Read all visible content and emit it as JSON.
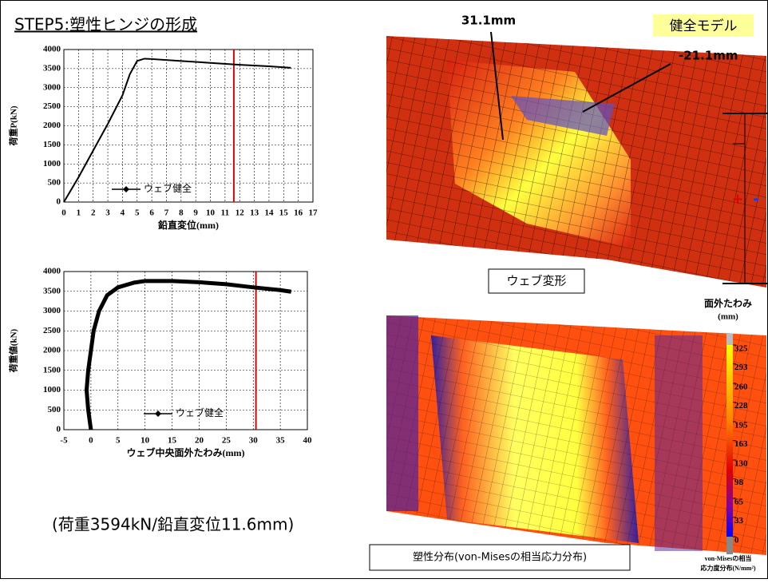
{
  "title": "STEP5:塑性ヒンジの形成",
  "note": "(荷重3594kN/鉛直変位11.6mm)",
  "chart_data": [
    {
      "type": "line",
      "xlabel": "鉛直変位(mm)",
      "ylabel": "荷重P(kN)",
      "x": [
        0,
        1,
        2,
        3,
        4,
        4.5,
        5,
        5.5,
        6,
        8,
        10,
        12,
        14,
        15.5
      ],
      "series": [
        {
          "name": "ウェブ健全",
          "color": "#000000",
          "values": [
            0,
            650,
            1350,
            2050,
            2800,
            3350,
            3700,
            3760,
            3750,
            3700,
            3650,
            3600,
            3560,
            3520
          ]
        }
      ],
      "xlim": [
        0,
        17
      ],
      "xticks": [
        0,
        1,
        2,
        3,
        4,
        5,
        6,
        7,
        8,
        9,
        10,
        11,
        12,
        13,
        14,
        15,
        16,
        17
      ],
      "ylim": [
        0,
        4000
      ],
      "yticks": [
        0,
        500,
        1000,
        1500,
        2000,
        2500,
        3000,
        3500,
        4000
      ],
      "grid": true,
      "vline": {
        "x": 11.6,
        "color": "#e00000"
      }
    },
    {
      "type": "line",
      "xlabel": "ウェブ中央面外たわみ(mm)",
      "ylabel": "荷重値(kN)",
      "x": [
        0,
        -0.5,
        -0.8,
        -0.5,
        0,
        0.5,
        1.5,
        3,
        5,
        8,
        10,
        15,
        20,
        25,
        30,
        35,
        37
      ],
      "series": [
        {
          "name": "ウェブ健全",
          "color": "#000000",
          "values": [
            0,
            500,
            1000,
            1500,
            2000,
            2500,
            3000,
            3400,
            3600,
            3720,
            3760,
            3760,
            3730,
            3680,
            3600,
            3530,
            3490
          ]
        }
      ],
      "xlim": [
        -5,
        40
      ],
      "xticks": [
        -5,
        0,
        5,
        10,
        15,
        20,
        25,
        30,
        35,
        40
      ],
      "ylim": [
        0,
        4000
      ],
      "yticks": [
        0,
        500,
        1000,
        1500,
        2000,
        2500,
        3000,
        3500,
        4000
      ],
      "grid": true,
      "vline": {
        "x": 30.5,
        "color": "#e00000"
      }
    }
  ],
  "fem": {
    "max_label": "31.1mm",
    "min_label": "-21.1mm",
    "model_label": "健全モデル",
    "deform_caption": "ウェブ変形",
    "stress_caption": "塑性分布(von-Misesの相当応力分布)",
    "plus": "+",
    "minus": "-",
    "deflection_title": "面外たわみ",
    "deflection_unit": "(mm)"
  },
  "colorbar": {
    "ticks": [
      325,
      293,
      260,
      228,
      195,
      163,
      130,
      98,
      65,
      33,
      0
    ],
    "range": [
      0,
      325
    ],
    "title_1": "von-Misesの相当",
    "title_2": "応力度分布(N/mm²)"
  }
}
